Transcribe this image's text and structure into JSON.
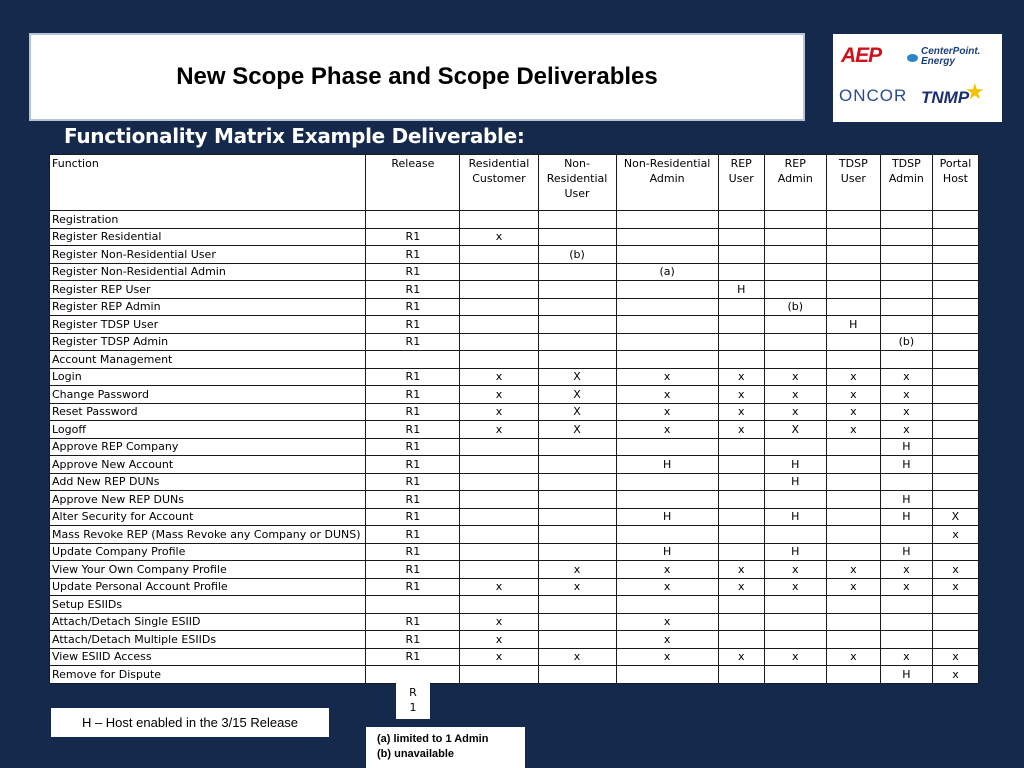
{
  "title": "New Scope Phase and Scope Deliverables",
  "logos": {
    "aep": "AEP",
    "centerpoint": "CenterPoint.",
    "centerpoint_sub": "Energy",
    "oncor": "ONCOR",
    "tnmp": "TNMP"
  },
  "subtitle": "Functionality Matrix Example Deliverable:",
  "columns": [
    "Function",
    "Release",
    "Residential Customer",
    "Non-Residential User",
    "Non-Residential Admin",
    "REP User",
    "REP Admin",
    "TDSP User",
    "TDSP Admin",
    "Portal Host"
  ],
  "rows": [
    [
      "Registration",
      "",
      "",
      "",
      "",
      "",
      "",
      "",
      "",
      ""
    ],
    [
      "Register Residential",
      "R1",
      "x",
      "",
      "",
      "",
      "",
      "",
      "",
      ""
    ],
    [
      "Register Non-Residential User",
      "R1",
      "",
      "(b)",
      "",
      "",
      "",
      "",
      "",
      ""
    ],
    [
      "Register Non-Residential Admin",
      "R1",
      "",
      "",
      "(a)",
      "",
      "",
      "",
      "",
      ""
    ],
    [
      "Register REP User",
      "R1",
      "",
      "",
      "",
      "H",
      "",
      "",
      "",
      ""
    ],
    [
      "Register REP Admin",
      "R1",
      "",
      "",
      "",
      "",
      "(b)",
      "",
      "",
      ""
    ],
    [
      "Register TDSP User",
      "R1",
      "",
      "",
      "",
      "",
      "",
      "H",
      "",
      ""
    ],
    [
      "Register TDSP Admin",
      "R1",
      "",
      "",
      "",
      "",
      "",
      "",
      "(b)",
      ""
    ],
    [
      "Account Management",
      "",
      "",
      "",
      "",
      "",
      "",
      "",
      "",
      ""
    ],
    [
      "Login",
      "R1",
      "x",
      "X",
      "x",
      "x",
      "x",
      "x",
      "x",
      ""
    ],
    [
      "Change Password",
      "R1",
      "x",
      "X",
      "x",
      "x",
      "x",
      "x",
      "x",
      ""
    ],
    [
      "Reset Password",
      "R1",
      "x",
      "X",
      "x",
      "x",
      "x",
      "x",
      "x",
      ""
    ],
    [
      "Logoff",
      "R1",
      "x",
      "X",
      "x",
      "x",
      "X",
      "x",
      "x",
      ""
    ],
    [
      "Approve REP Company",
      "R1",
      "",
      "",
      "",
      "",
      "",
      "",
      "H",
      ""
    ],
    [
      "Approve New Account",
      "R1",
      "",
      "",
      "H",
      "",
      "H",
      "",
      "H",
      ""
    ],
    [
      "Add New REP DUNs",
      "R1",
      "",
      "",
      "",
      "",
      "H",
      "",
      "",
      ""
    ],
    [
      "Approve New REP DUNs",
      "R1",
      "",
      "",
      "",
      "",
      "",
      "",
      "H",
      ""
    ],
    [
      "Alter Security for Account",
      "R1",
      "",
      "",
      "H",
      "",
      "H",
      "",
      "H",
      "X"
    ],
    [
      "Mass Revoke REP  (Mass Revoke any Company or DUNS)",
      "R1",
      "",
      "",
      "",
      "",
      "",
      "",
      "",
      "x"
    ],
    [
      "Update Company Profile",
      "R1",
      "",
      "",
      "H",
      "",
      "H",
      "",
      "H",
      ""
    ],
    [
      "View Your Own Company Profile",
      "R1",
      "",
      "x",
      "x",
      "x",
      "x",
      "x",
      "x",
      "x"
    ],
    [
      "Update Personal Account Profile",
      "R1",
      "x",
      "x",
      "x",
      "x",
      "x",
      "x",
      "x",
      "x"
    ],
    [
      "Setup ESIIDs",
      "",
      "",
      "",
      "",
      "",
      "",
      "",
      "",
      ""
    ],
    [
      "Attach/Detach Single ESIID",
      "R1",
      "x",
      "",
      "x",
      "",
      "",
      "",
      "",
      ""
    ],
    [
      "Attach/Detach Multiple ESIIDs",
      "R1",
      "x",
      "",
      "x",
      "",
      "",
      "",
      "",
      ""
    ],
    [
      "View ESIID Access",
      "R1",
      "x",
      "x",
      "x",
      "x",
      "x",
      "x",
      "x",
      "x"
    ],
    [
      "Remove for Dispute",
      "",
      "",
      "",
      "",
      "",
      "",
      "",
      "H",
      "x"
    ]
  ],
  "r1_note": [
    "R",
    "1"
  ],
  "legend_h": "H – Host enabled in the 3/15 Release",
  "legend_a": "(a)   limited to 1 Admin",
  "legend_b": "(b)   unavailable"
}
